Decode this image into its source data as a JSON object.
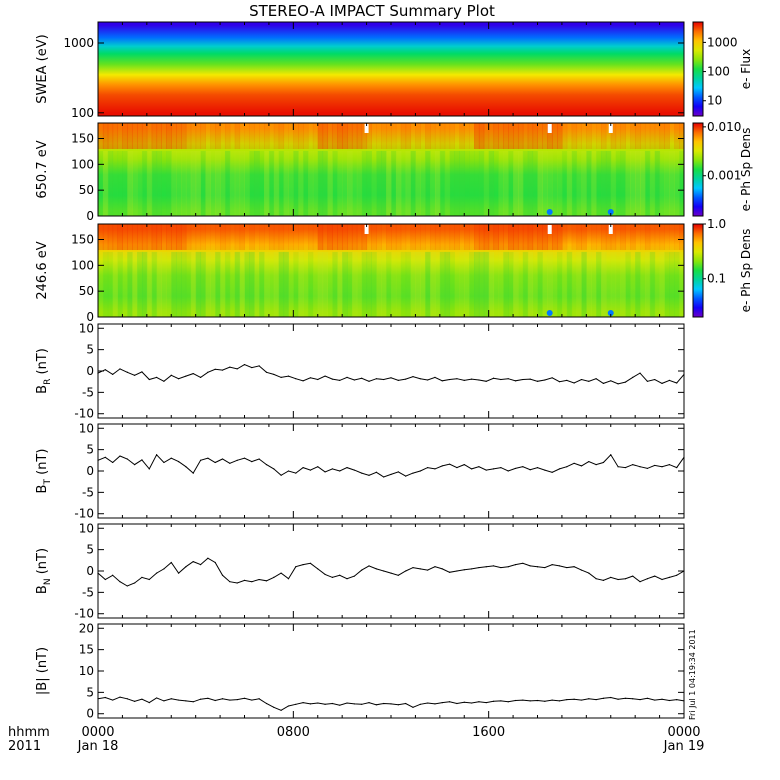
{
  "title": "STEREO-A IMPACT Summary Plot",
  "side_stamp": "Fri Jul 1 04:19:34 2011",
  "x_axis": {
    "corner_top": "hhmm",
    "corner_bottom": "2011",
    "ticks": [
      {
        "t": 0,
        "top": "0000",
        "bottom": "Jan 18"
      },
      {
        "t": 8,
        "top": "0800",
        "bottom": ""
      },
      {
        "t": 16,
        "top": "1600",
        "bottom": ""
      },
      {
        "t": 24,
        "top": "0000",
        "bottom": "Jan 19"
      }
    ],
    "range_hours": [
      0,
      24
    ]
  },
  "colors": {
    "line": "#000000",
    "frame": "#000000"
  },
  "chart_data": [
    {
      "type": "heatmap",
      "panel": "swea",
      "ylabel": "SWEA (eV)",
      "y_scale": "log",
      "ylim": [
        90,
        2000
      ],
      "y_ticks": [
        {
          "v": 100,
          "label": "100"
        },
        {
          "v": 1000,
          "label": "1000"
        }
      ],
      "colorbar": {
        "label": "e- Flux",
        "scale": "log",
        "range": [
          3,
          5000
        ],
        "ticks": [
          {
            "v": 10,
            "label": "10"
          },
          {
            "v": 100,
            "label": "100"
          },
          {
            "v": 1000,
            "label": "1000"
          }
        ]
      },
      "profile": [
        {
          "energy_eV": 1800,
          "flux": 5
        },
        {
          "energy_eV": 1200,
          "flux": 15
        },
        {
          "energy_eV": 900,
          "flux": 40
        },
        {
          "energy_eV": 700,
          "flux": 90
        },
        {
          "energy_eV": 500,
          "flux": 200
        },
        {
          "energy_eV": 350,
          "flux": 700
        },
        {
          "energy_eV": 250,
          "flux": 1800
        },
        {
          "energy_eV": 180,
          "flux": 3000
        },
        {
          "energy_eV": 100,
          "flux": 4500
        }
      ]
    },
    {
      "type": "heatmap",
      "panel": "pad650",
      "ylabel": "650.7 eV",
      "ylim": [
        0,
        180
      ],
      "y_ticks": [
        {
          "v": 0,
          "label": "0"
        },
        {
          "v": 50,
          "label": "50"
        },
        {
          "v": 100,
          "label": "100"
        },
        {
          "v": 150,
          "label": "150"
        }
      ],
      "colorbar": {
        "label": "e- Ph Sp Dens",
        "scale": "log",
        "range": [
          0.00015,
          0.012
        ],
        "ticks": [
          {
            "v": 0.001,
            "label": "0.001"
          },
          {
            "v": 0.01,
            "label": "0.010"
          }
        ]
      },
      "notes": "High density near 180 deg (red/orange) across the day, strongest around 10-11h and 17-19h; lower density (green) below ~100 deg; data gaps near 11h, 18.5h and 21h at top; low values near 0 deg at 18.5h and 21h.",
      "pitch_profile": [
        {
          "pitch_deg": 170,
          "value": 0.006
        },
        {
          "pitch_deg": 140,
          "value": 0.003
        },
        {
          "pitch_deg": 110,
          "value": 0.0022
        },
        {
          "pitch_deg": 80,
          "value": 0.0015
        },
        {
          "pitch_deg": 40,
          "value": 0.0014
        },
        {
          "pitch_deg": 10,
          "value": 0.0017
        }
      ]
    },
    {
      "type": "heatmap",
      "panel": "pad246",
      "ylabel": "246.6 eV",
      "ylim": [
        0,
        180
      ],
      "y_ticks": [
        {
          "v": 0,
          "label": "0"
        },
        {
          "v": 50,
          "label": "50"
        },
        {
          "v": 100,
          "label": "100"
        },
        {
          "v": 150,
          "label": "150"
        }
      ],
      "colorbar": {
        "label": "e- Ph Sp Dens",
        "scale": "log",
        "range": [
          0.02,
          1.0
        ],
        "ticks": [
          {
            "v": 0.1,
            "label": "0.1"
          },
          {
            "v": 1.0,
            "label": "1.0"
          }
        ]
      },
      "notes": "Strong field-aligned strahl near 180 deg (red) especially 0-4h, 9-11h and 16-19h; green below ~90 deg; gaps at 11h, 18.5h, 21h near top.",
      "pitch_profile": [
        {
          "pitch_deg": 170,
          "value": 0.7
        },
        {
          "pitch_deg": 140,
          "value": 0.45
        },
        {
          "pitch_deg": 110,
          "value": 0.3
        },
        {
          "pitch_deg": 80,
          "value": 0.2
        },
        {
          "pitch_deg": 40,
          "value": 0.18
        },
        {
          "pitch_deg": 10,
          "value": 0.22
        }
      ]
    },
    {
      "type": "line",
      "panel": "br",
      "ylabel_main": "B",
      "ylabel_sub": "R",
      "ylabel_unit": " (nT)",
      "ylim": [
        -11,
        11
      ],
      "y_ticks": [
        {
          "v": -10,
          "label": "-10"
        },
        {
          "v": -5,
          "label": "-5"
        },
        {
          "v": 0,
          "label": "0"
        },
        {
          "v": 5,
          "label": "5"
        },
        {
          "v": 10,
          "label": "10"
        }
      ],
      "x": [
        0,
        0.3,
        0.6,
        0.9,
        1.2,
        1.5,
        1.8,
        2.1,
        2.4,
        2.7,
        3.0,
        3.3,
        3.6,
        3.9,
        4.2,
        4.5,
        4.8,
        5.1,
        5.4,
        5.7,
        6.0,
        6.3,
        6.6,
        6.9,
        7.2,
        7.5,
        7.8,
        8.1,
        8.4,
        8.7,
        9.0,
        9.3,
        9.6,
        9.9,
        10.2,
        10.5,
        10.8,
        11.1,
        11.4,
        11.7,
        12.0,
        12.3,
        12.6,
        12.9,
        13.2,
        13.5,
        13.8,
        14.1,
        14.4,
        14.7,
        15.0,
        15.3,
        15.6,
        15.9,
        16.2,
        16.5,
        16.8,
        17.1,
        17.4,
        17.7,
        18.0,
        18.3,
        18.6,
        18.9,
        19.2,
        19.5,
        19.8,
        20.1,
        20.4,
        20.7,
        21.0,
        21.3,
        21.6,
        21.9,
        22.2,
        22.5,
        22.8,
        23.1,
        23.4,
        23.7,
        24.0
      ],
      "y": [
        -0.5,
        0.3,
        -0.8,
        0.5,
        -0.3,
        -1.0,
        -0.2,
        -2.0,
        -1.5,
        -2.4,
        -1.0,
        -1.8,
        -1.2,
        -0.6,
        -1.5,
        -0.3,
        0.4,
        0.2,
        0.9,
        0.5,
        1.5,
        0.8,
        1.2,
        -0.3,
        -0.8,
        -1.5,
        -1.2,
        -1.8,
        -2.3,
        -1.6,
        -2.0,
        -1.2,
        -1.9,
        -2.2,
        -1.5,
        -2.1,
        -1.7,
        -2.4,
        -1.8,
        -2.0,
        -1.6,
        -2.2,
        -1.9,
        -1.3,
        -1.8,
        -2.1,
        -1.5,
        -2.3,
        -2.0,
        -1.8,
        -2.2,
        -1.9,
        -2.1,
        -2.4,
        -1.7,
        -2.0,
        -1.8,
        -2.3,
        -2.0,
        -1.9,
        -2.4,
        -2.1,
        -1.6,
        -2.5,
        -2.2,
        -2.8,
        -2.0,
        -2.4,
        -1.8,
        -2.9,
        -2.3,
        -3.0,
        -2.6,
        -1.5,
        -0.5,
        -2.4,
        -2.0,
        -2.9,
        -2.2,
        -2.8,
        -0.8
      ]
    },
    {
      "type": "line",
      "panel": "bt",
      "ylabel_main": "B",
      "ylabel_sub": "T",
      "ylabel_unit": " (nT)",
      "ylim": [
        -11,
        11
      ],
      "y_ticks": [
        {
          "v": -10,
          "label": "-10"
        },
        {
          "v": -5,
          "label": "-5"
        },
        {
          "v": 0,
          "label": "0"
        },
        {
          "v": 5,
          "label": "5"
        },
        {
          "v": 10,
          "label": "10"
        }
      ],
      "x": [
        0,
        0.3,
        0.6,
        0.9,
        1.2,
        1.5,
        1.8,
        2.1,
        2.4,
        2.7,
        3.0,
        3.3,
        3.6,
        3.9,
        4.2,
        4.5,
        4.8,
        5.1,
        5.4,
        5.7,
        6.0,
        6.3,
        6.6,
        6.9,
        7.2,
        7.5,
        7.8,
        8.1,
        8.4,
        8.7,
        9.0,
        9.3,
        9.6,
        9.9,
        10.2,
        10.5,
        10.8,
        11.1,
        11.4,
        11.7,
        12.0,
        12.3,
        12.6,
        12.9,
        13.2,
        13.5,
        13.8,
        14.1,
        14.4,
        14.7,
        15.0,
        15.3,
        15.6,
        15.9,
        16.2,
        16.5,
        16.8,
        17.1,
        17.4,
        17.7,
        18.0,
        18.3,
        18.6,
        18.9,
        19.2,
        19.5,
        19.8,
        20.1,
        20.4,
        20.7,
        21.0,
        21.3,
        21.6,
        21.9,
        22.2,
        22.5,
        22.8,
        23.1,
        23.4,
        23.7,
        24.0
      ],
      "y": [
        2.5,
        3.2,
        2.0,
        3.5,
        2.8,
        1.5,
        2.6,
        0.5,
        3.8,
        2.0,
        3.0,
        2.2,
        1.0,
        -0.5,
        2.5,
        3.0,
        2.0,
        2.8,
        1.8,
        2.5,
        3.0,
        2.2,
        2.8,
        1.5,
        0.5,
        -1.0,
        0.0,
        -0.5,
        0.8,
        0.2,
        1.0,
        -0.2,
        0.5,
        0.0,
        0.8,
        0.2,
        -0.5,
        -1.0,
        -0.3,
        -1.4,
        -0.8,
        -0.2,
        -1.2,
        -0.5,
        0.0,
        0.8,
        0.5,
        1.2,
        1.6,
        0.8,
        1.5,
        0.5,
        1.0,
        0.2,
        0.5,
        0.8,
        0.0,
        0.6,
        1.0,
        0.3,
        0.8,
        0.2,
        -0.3,
        0.5,
        1.0,
        1.8,
        1.2,
        2.2,
        1.5,
        2.0,
        3.8,
        1.0,
        0.8,
        1.5,
        1.0,
        0.6,
        1.3,
        1.0,
        1.5,
        0.8,
        3.2
      ]
    },
    {
      "type": "line",
      "panel": "bn",
      "ylabel_main": "B",
      "ylabel_sub": "N",
      "ylabel_unit": " (nT)",
      "ylim": [
        -11,
        11
      ],
      "y_ticks": [
        {
          "v": -10,
          "label": "-10"
        },
        {
          "v": -5,
          "label": "-5"
        },
        {
          "v": 0,
          "label": "0"
        },
        {
          "v": 5,
          "label": "5"
        },
        {
          "v": 10,
          "label": "10"
        }
      ],
      "x": [
        0,
        0.3,
        0.6,
        0.9,
        1.2,
        1.5,
        1.8,
        2.1,
        2.4,
        2.7,
        3.0,
        3.3,
        3.6,
        3.9,
        4.2,
        4.5,
        4.8,
        5.1,
        5.4,
        5.7,
        6.0,
        6.3,
        6.6,
        6.9,
        7.2,
        7.5,
        7.8,
        8.1,
        8.4,
        8.7,
        9.0,
        9.3,
        9.6,
        9.9,
        10.2,
        10.5,
        10.8,
        11.1,
        11.4,
        11.7,
        12.0,
        12.3,
        12.6,
        12.9,
        13.2,
        13.5,
        13.8,
        14.1,
        14.4,
        14.7,
        15.0,
        15.3,
        15.6,
        15.9,
        16.2,
        16.5,
        16.8,
        17.1,
        17.4,
        17.7,
        18.0,
        18.3,
        18.6,
        18.9,
        19.2,
        19.5,
        19.8,
        20.1,
        20.4,
        20.7,
        21.0,
        21.3,
        21.6,
        21.9,
        22.2,
        22.5,
        22.8,
        23.1,
        23.4,
        23.7,
        24.0
      ],
      "y": [
        -0.5,
        -2.0,
        -1.0,
        -2.5,
        -3.5,
        -2.8,
        -1.5,
        -2.0,
        -0.5,
        0.5,
        2.0,
        -0.5,
        1.0,
        2.2,
        1.5,
        3.0,
        2.0,
        -1.0,
        -2.5,
        -2.8,
        -2.2,
        -2.5,
        -2.0,
        -2.3,
        -1.5,
        -0.5,
        -1.8,
        1.0,
        1.5,
        1.8,
        0.5,
        -0.8,
        -1.5,
        -1.0,
        -1.8,
        -1.2,
        0.2,
        1.2,
        0.5,
        0.0,
        -0.5,
        -1.0,
        0.0,
        0.8,
        0.5,
        0.2,
        1.0,
        0.5,
        -0.3,
        0.0,
        0.3,
        0.5,
        0.8,
        1.0,
        1.2,
        0.8,
        1.0,
        1.5,
        1.8,
        1.2,
        1.0,
        0.8,
        1.5,
        1.2,
        0.8,
        1.0,
        0.2,
        -0.5,
        -1.8,
        -2.2,
        -1.5,
        -2.0,
        -1.8,
        -1.2,
        -2.5,
        -1.8,
        -1.2,
        -2.0,
        -1.5,
        -1.0,
        0.0
      ]
    },
    {
      "type": "line",
      "panel": "bmag",
      "ylabel_main": "|B|",
      "ylabel_sub": "",
      "ylabel_unit": " (nT)",
      "ylim": [
        -1,
        21
      ],
      "y_ticks": [
        {
          "v": 0,
          "label": "0"
        },
        {
          "v": 5,
          "label": "5"
        },
        {
          "v": 10,
          "label": "10"
        },
        {
          "v": 15,
          "label": "15"
        },
        {
          "v": 20,
          "label": "20"
        }
      ],
      "x": [
        0,
        0.3,
        0.6,
        0.9,
        1.2,
        1.5,
        1.8,
        2.1,
        2.4,
        2.7,
        3.0,
        3.3,
        3.6,
        3.9,
        4.2,
        4.5,
        4.8,
        5.1,
        5.4,
        5.7,
        6.0,
        6.3,
        6.6,
        6.9,
        7.2,
        7.5,
        7.8,
        8.1,
        8.4,
        8.7,
        9.0,
        9.3,
        9.6,
        9.9,
        10.2,
        10.5,
        10.8,
        11.1,
        11.4,
        11.7,
        12.0,
        12.3,
        12.6,
        12.9,
        13.2,
        13.5,
        13.8,
        14.1,
        14.4,
        14.7,
        15.0,
        15.3,
        15.6,
        15.9,
        16.2,
        16.5,
        16.8,
        17.1,
        17.4,
        17.7,
        18.0,
        18.3,
        18.6,
        18.9,
        19.2,
        19.5,
        19.8,
        20.1,
        20.4,
        20.7,
        21.0,
        21.3,
        21.6,
        21.9,
        22.2,
        22.5,
        22.8,
        23.1,
        23.4,
        23.7,
        24.0
      ],
      "y": [
        3.5,
        3.8,
        3.2,
        3.9,
        3.5,
        2.9,
        3.4,
        2.6,
        3.7,
        3.0,
        3.5,
        3.2,
        3.0,
        2.8,
        3.4,
        3.6,
        3.1,
        3.5,
        3.2,
        3.3,
        3.6,
        3.2,
        3.5,
        2.4,
        1.5,
        0.8,
        1.8,
        2.2,
        2.6,
        2.3,
        2.5,
        2.2,
        2.4,
        2.0,
        2.5,
        2.3,
        2.2,
        2.6,
        2.1,
        2.4,
        2.3,
        2.1,
        2.4,
        1.5,
        2.2,
        2.5,
        2.3,
        2.6,
        2.8,
        2.4,
        2.7,
        2.5,
        2.8,
        2.6,
        2.9,
        3.0,
        2.8,
        3.1,
        3.2,
        3.0,
        3.1,
        2.9,
        3.2,
        3.0,
        3.3,
        3.4,
        3.2,
        3.5,
        3.3,
        3.6,
        3.8,
        3.4,
        3.6,
        3.5,
        3.3,
        3.6,
        3.2,
        3.4,
        3.1,
        3.3,
        3.0
      ]
    }
  ]
}
